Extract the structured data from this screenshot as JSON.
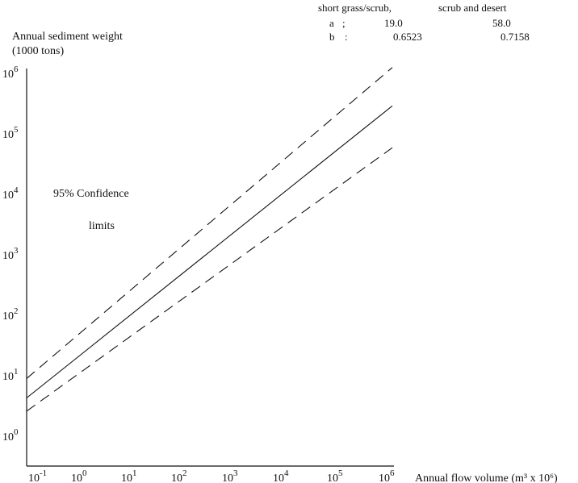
{
  "chart_data": {
    "type": "line",
    "ylabel": "Annual sediment weight",
    "ylabel_unit": "(1000 tons)",
    "xlabel": "Annual flow volume (m³ x 10⁶)",
    "x_scale": "log",
    "y_scale": "log",
    "xlim": [
      0.1,
      1000000
    ],
    "ylim": [
      1,
      1000000
    ],
    "grid": false,
    "x_ticks": [
      {
        "value": 0.1,
        "base": "10",
        "exp": "-1"
      },
      {
        "value": 1,
        "base": "10",
        "exp": "0"
      },
      {
        "value": 10,
        "base": "10",
        "exp": "1"
      },
      {
        "value": 100,
        "base": "10",
        "exp": "2"
      },
      {
        "value": 1000,
        "base": "10",
        "exp": "3"
      },
      {
        "value": 10000,
        "base": "10",
        "exp": "4"
      },
      {
        "value": 100000,
        "base": "10",
        "exp": "5"
      },
      {
        "value": 1000000,
        "base": "10",
        "exp": "6"
      }
    ],
    "y_ticks": [
      {
        "value": 1,
        "base": "10",
        "exp": "0"
      },
      {
        "value": 10,
        "base": "10",
        "exp": "1"
      },
      {
        "value": 100,
        "base": "10",
        "exp": "2"
      },
      {
        "value": 1000,
        "base": "10",
        "exp": "3"
      },
      {
        "value": 10000,
        "base": "10",
        "exp": "4"
      },
      {
        "value": 100000,
        "base": "10",
        "exp": "5"
      },
      {
        "value": 1000000,
        "base": "10",
        "exp": "6"
      }
    ],
    "series": [
      {
        "style": "solid",
        "points": [
          [
            0.1,
            4.3
          ],
          [
            1000000,
            290000
          ]
        ]
      },
      {
        "style": "dashed",
        "points": [
          [
            0.1,
            9.0
          ],
          [
            1000000,
            1250000
          ]
        ]
      },
      {
        "style": "dashed",
        "points": [
          [
            0.1,
            2.6
          ],
          [
            1000000,
            59000
          ]
        ]
      }
    ],
    "annotation": {
      "line1": "95% Confidence",
      "line2": "limits"
    },
    "parameter_table": {
      "col1_header": "short grass/scrub,",
      "col2_header": "scrub and desert",
      "rows": [
        {
          "label": "a",
          "sep": ";",
          "v1": "19.0",
          "v2": "58.0"
        },
        {
          "label": "b",
          "sep": ":",
          "v1": "0.6523",
          "v2": "0.7158"
        }
      ]
    }
  }
}
